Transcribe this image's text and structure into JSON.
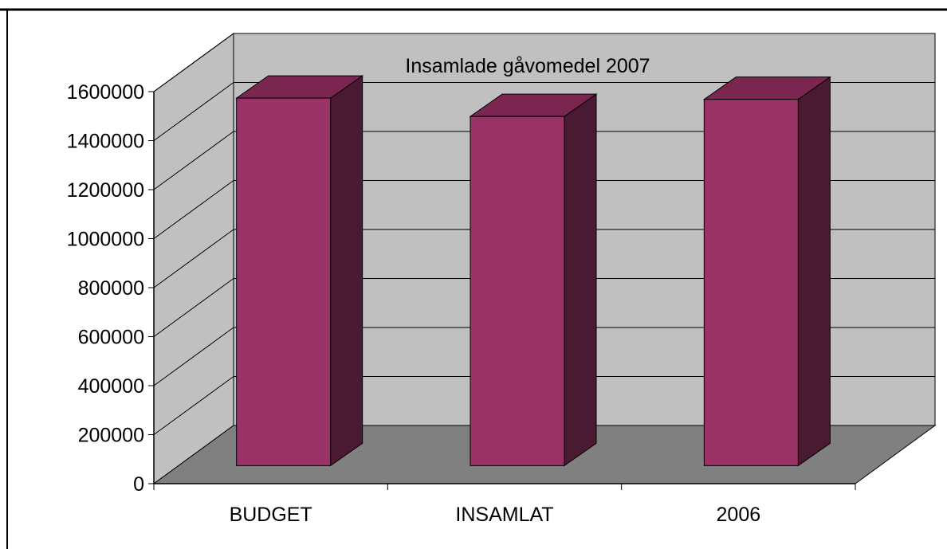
{
  "chart_data": {
    "type": "bar",
    "title": "Insamlade gåvomedel 2007",
    "xlabel": "",
    "ylabel": "",
    "categories": [
      "BUDGET",
      "INSAMLAT",
      "2006"
    ],
    "series": [
      {
        "values": [
          1500000,
          1425000,
          1495000
        ]
      }
    ],
    "ylim": [
      0,
      1600000
    ],
    "yticks": [
      "0",
      "200000",
      "400000",
      "600000",
      "800000",
      "1000000",
      "1200000",
      "1400000",
      "1600000"
    ],
    "grid": true,
    "legend": "none",
    "style": "3d-column"
  },
  "colors": {
    "bar_front": "#993366",
    "bar_side": "#4a1a33",
    "bar_top": "#7a2650",
    "back_wall": "#c0c0c0",
    "side_wall": "#c0c0c0",
    "floor": "#808080",
    "gridline": "#000000"
  }
}
